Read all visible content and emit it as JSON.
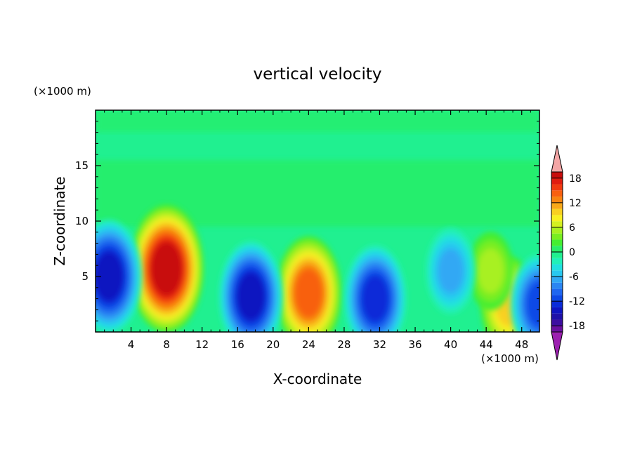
{
  "chart_data": {
    "type": "heatmap",
    "title": "vertical velocity",
    "xlabel": "X-coordinate",
    "ylabel": "Z-coordinate",
    "x_unit": "(×1000 m)",
    "y_unit": "(×1000 m)",
    "xlim": [
      0,
      50
    ],
    "ylim": [
      0,
      20
    ],
    "x_ticks": [
      "4",
      "8",
      "12",
      "16",
      "20",
      "24",
      "28",
      "32",
      "36",
      "40",
      "44",
      "48"
    ],
    "y_ticks": [
      "5",
      "10",
      "15"
    ],
    "colorbar": {
      "tick_labels": [
        "18",
        "12",
        "6",
        "0",
        "-6",
        "-12",
        "-18"
      ],
      "levels": [
        -21,
        -19.5,
        -18,
        -16.5,
        -15,
        -13.5,
        -12,
        -10.5,
        -9,
        -7.5,
        -6,
        -4.5,
        -3,
        -1.5,
        0,
        1.5,
        3,
        4.5,
        6,
        7.5,
        9,
        10.5,
        12,
        13.5,
        15,
        16.5,
        18,
        19.5,
        21
      ],
      "colors": [
        "#9c20b0",
        "#6a0fa0",
        "#3c0ea0",
        "#1e10a8",
        "#0e14c0",
        "#0a2bd8",
        "#0c48e6",
        "#1e66f0",
        "#2a86f2",
        "#30a8f4",
        "#28c8f0",
        "#20e0e0",
        "#20f0b8",
        "#20f090",
        "#28ee68",
        "#44ee30",
        "#78ee20",
        "#a8f020",
        "#d4f020",
        "#f8f020",
        "#f8d020",
        "#f8a818",
        "#f88410",
        "#f86010",
        "#f03a10",
        "#e01c10",
        "#c80c0c",
        "#f4a6a6"
      ]
    },
    "features": [
      {
        "x": 8,
        "z": 5.7,
        "peak": 18
      },
      {
        "x": 24,
        "z": 3.5,
        "peak": 14
      },
      {
        "x": 46.5,
        "z": 2.5,
        "peak": 9
      },
      {
        "x": 44.5,
        "z": 5.5,
        "peak": 4
      },
      {
        "x": 1.5,
        "z": 5,
        "peak": -14
      },
      {
        "x": 17.5,
        "z": 3.2,
        "peak": -13
      },
      {
        "x": 31.5,
        "z": 3,
        "peak": -12
      },
      {
        "x": 40,
        "z": 5.5,
        "peak": -6
      },
      {
        "x": 50,
        "z": 2.5,
        "peak": -10
      }
    ]
  }
}
